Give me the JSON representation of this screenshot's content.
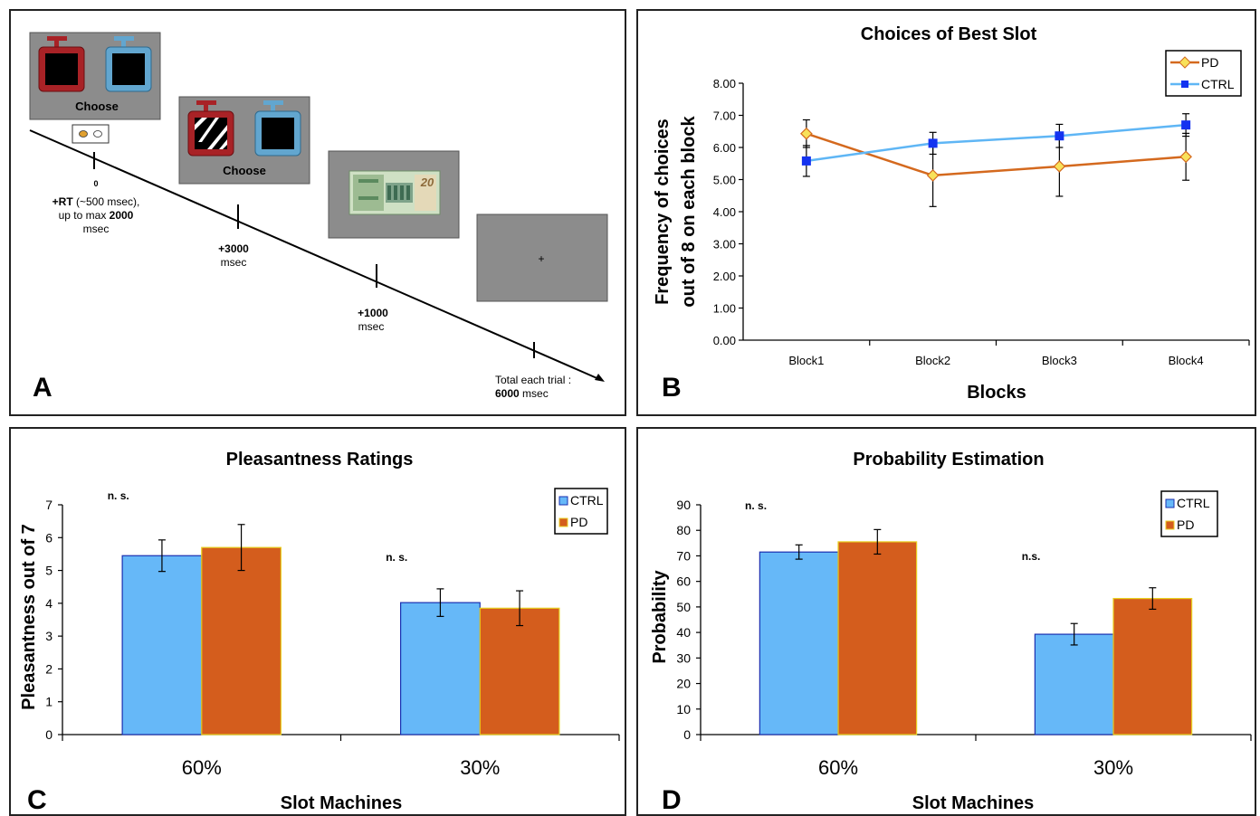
{
  "panels": {
    "a": {
      "letter": "A",
      "screen1_label": "Choose",
      "screen2_label": "Choose",
      "fixation": "+",
      "tick0_top": "0",
      "tick0_l1": "+RT (~500 msec),",
      "tick0_l2a": "up to max ",
      "tick0_l2b": "2000",
      "tick0_l3": "msec",
      "tick1_l1": "+3000",
      "tick1_l2": "msec",
      "tick2_l1": "+1000",
      "tick2_l2": "msec",
      "total_l1": "Total each trial :",
      "total_l2a": "6000",
      "total_l2b": " msec"
    },
    "b": {
      "letter": "B"
    },
    "c": {
      "letter": "C"
    },
    "d": {
      "letter": "D"
    }
  },
  "colors": {
    "ctrl_bar": "#66B8F8",
    "pd_bar": "#D45D1D",
    "ctrl_line": "#5FB6F5",
    "ctrl_marker": "#1433F0",
    "pd_line": "#D4691E",
    "pd_marker": "#F8E15A",
    "screen_gray": "#8C8C8C",
    "machine_red": "#A82226",
    "machine_blue": "#62A6CF"
  },
  "chart_data": [
    {
      "id": "b",
      "type": "line",
      "title": "Choices of Best Slot",
      "xlabel": "Blocks",
      "ylabel_lines": [
        "Frequency of choices",
        "out of 8 on each block"
      ],
      "categories": [
        "Block1",
        "Block2",
        "Block3",
        "Block4"
      ],
      "y_ticks": [
        "0.00",
        "1.00",
        "2.00",
        "3.00",
        "4.00",
        "5.00",
        "6.00",
        "7.00",
        "8.00"
      ],
      "ylim": [
        0,
        8
      ],
      "legend_position": "top-right",
      "series": [
        {
          "name": "PD",
          "values": [
            6.43,
            5.13,
            5.41,
            5.71
          ],
          "err": [
            0.43,
            0.97,
            0.93,
            0.73
          ]
        },
        {
          "name": "CTRL",
          "values": [
            5.58,
            6.13,
            6.36,
            6.7
          ],
          "err": [
            0.48,
            0.34,
            0.36,
            0.35
          ]
        }
      ]
    },
    {
      "id": "c",
      "type": "bar",
      "title": "Pleasantness Ratings",
      "xlabel": "Slot Machines",
      "ylabel": "Pleasantness  out of 7",
      "categories": [
        "60%",
        "30%"
      ],
      "y_ticks": [
        "0",
        "1",
        "2",
        "3",
        "4",
        "5",
        "6",
        "7"
      ],
      "ylim": [
        0,
        7
      ],
      "annotations": [
        "n. s.",
        "n. s."
      ],
      "legend_position": "top-right",
      "series": [
        {
          "name": "CTRL",
          "values": [
            5.45,
            4.02
          ],
          "err": [
            0.48,
            0.42
          ]
        },
        {
          "name": "PD",
          "values": [
            5.7,
            3.85
          ],
          "err": [
            0.7,
            0.53
          ]
        }
      ]
    },
    {
      "id": "d",
      "type": "bar",
      "title": "Probability Estimation",
      "xlabel": "Slot Machines",
      "ylabel": "Probability",
      "categories": [
        "60%",
        "30%"
      ],
      "y_ticks": [
        "0",
        "10",
        "20",
        "30",
        "40",
        "50",
        "60",
        "70",
        "80",
        "90"
      ],
      "ylim": [
        0,
        90
      ],
      "annotations": [
        "n. s.",
        "n.s."
      ],
      "legend_position": "top-right",
      "series": [
        {
          "name": "CTRL",
          "values": [
            71.5,
            39.3
          ],
          "err": [
            2.8,
            4.2
          ]
        },
        {
          "name": "PD",
          "values": [
            75.5,
            53.3
          ],
          "err": [
            4.8,
            4.2
          ]
        }
      ]
    }
  ]
}
